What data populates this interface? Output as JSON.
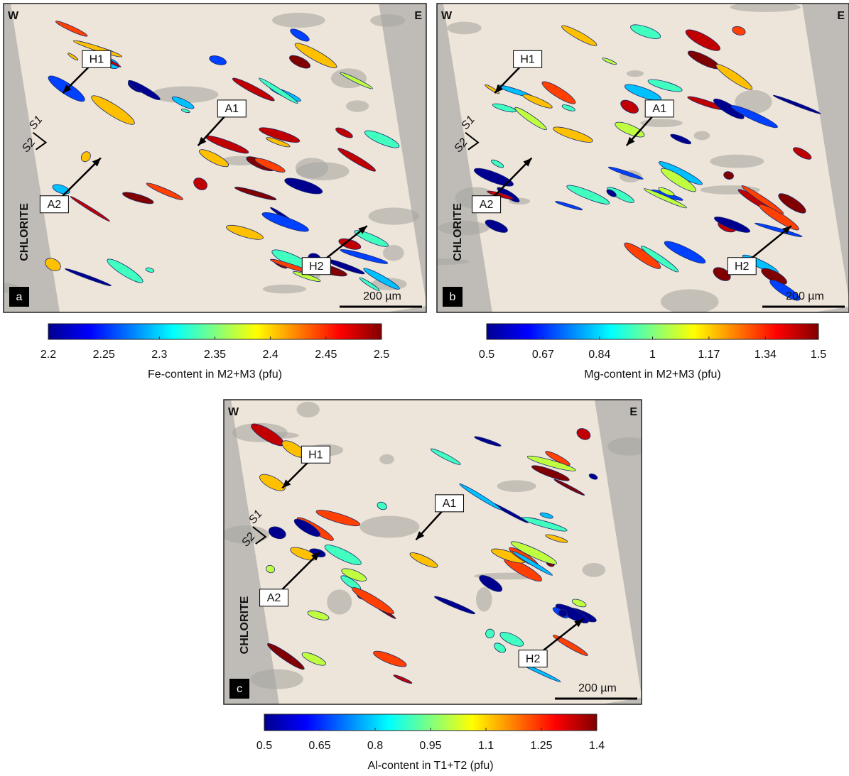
{
  "panels": [
    {
      "letter": "a",
      "west": "W",
      "east": "E",
      "markers": [
        "H1",
        "A1",
        "A2",
        "H2"
      ],
      "foliation": [
        "S1",
        "S2"
      ],
      "rock": "CHLORITE",
      "scale": "200 µm",
      "colorbar": {
        "label": "Fe-content in M2+M3 (pfu)",
        "lim": [
          2.2,
          2.5
        ],
        "ticks": [
          2.2,
          2.25,
          2.3,
          2.35,
          2.4,
          2.45,
          2.5
        ]
      }
    },
    {
      "letter": "b",
      "west": "W",
      "east": "E",
      "markers": [
        "H1",
        "A1",
        "A2",
        "H2"
      ],
      "foliation": [
        "S1",
        "S2"
      ],
      "rock": "CHLORITE",
      "scale": "200 µm",
      "colorbar": {
        "label": "Mg-content in M2+M3 (pfu)",
        "lim": [
          0.5,
          1.5
        ],
        "ticks": [
          0.5,
          0.67,
          0.84,
          1,
          1.17,
          1.34,
          1.5
        ]
      }
    },
    {
      "letter": "c",
      "west": "W",
      "east": "E",
      "markers": [
        "H1",
        "A1",
        "A2",
        "H2"
      ],
      "foliation": [
        "S1",
        "S2"
      ],
      "rock": "CHLORITE",
      "scale": "200 µm",
      "colorbar": {
        "label": "Al-content in T1+T2 (pfu)",
        "lim": [
          0.5,
          1.4
        ],
        "ticks": [
          0.5,
          0.65,
          0.8,
          0.95,
          1.1,
          1.25,
          1.4
        ]
      }
    }
  ]
}
